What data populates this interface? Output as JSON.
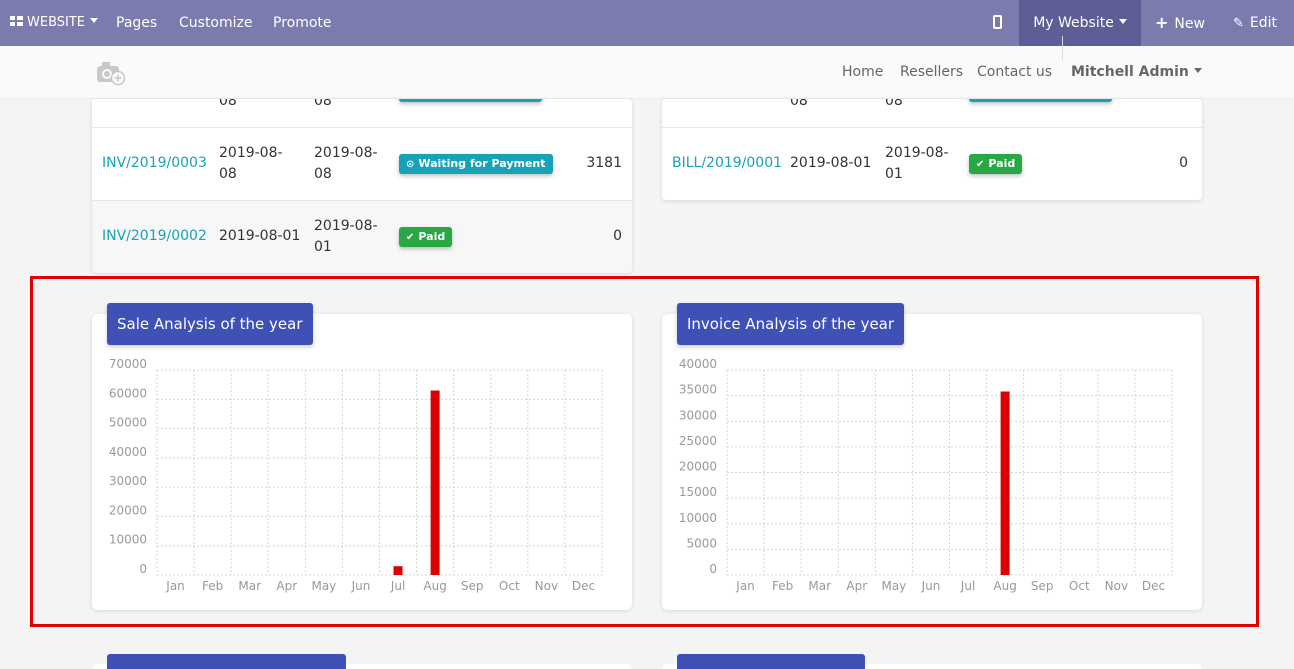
{
  "topbar": {
    "website_label": "WEBSITE",
    "menu": [
      "Pages",
      "Customize",
      "Promote"
    ],
    "my_website": "My Website",
    "new_label": "New",
    "edit_label": "Edit"
  },
  "header": {
    "nav": [
      "Home",
      "Resellers",
      "Contact us"
    ],
    "user": "Mitchell Admin"
  },
  "invoices_left": {
    "partial_row": {
      "date1": "08",
      "date2": "08"
    },
    "rows": [
      {
        "number": "INV/2019/0003",
        "date": "2019-08-08",
        "due": "2019-08-08",
        "status": "Waiting for Payment",
        "amount": "3181"
      },
      {
        "number": "INV/2019/0002",
        "date": "2019-08-01",
        "due": "2019-08-01",
        "status": "Paid",
        "amount": "0"
      }
    ]
  },
  "invoices_right": {
    "partial_row": {
      "date1": "08",
      "date2": "08"
    },
    "rows": [
      {
        "number": "BILL/2019/0001",
        "date": "2019-08-01",
        "due": "2019-08-01",
        "status": "Paid",
        "amount": "0"
      }
    ]
  },
  "colors": {
    "bar": "#dd0000",
    "title_bg": "#3f51b5",
    "link": "#17a2b8",
    "highlight": "#e00000"
  },
  "chart_data": [
    {
      "type": "bar",
      "title": "Sale Analysis of the year",
      "categories": [
        "Jan",
        "Feb",
        "Mar",
        "Apr",
        "May",
        "Jun",
        "Jul",
        "Aug",
        "Sep",
        "Oct",
        "Nov",
        "Dec"
      ],
      "values": [
        0,
        0,
        0,
        0,
        0,
        0,
        3000,
        63000,
        0,
        0,
        0,
        0
      ],
      "yticks": [
        0,
        10000,
        20000,
        30000,
        40000,
        50000,
        60000,
        70000
      ],
      "ylim": [
        0,
        70000
      ],
      "grid": true,
      "xlabel": "",
      "ylabel": ""
    },
    {
      "type": "bar",
      "title": "Invoice Analysis of the year",
      "categories": [
        "Jan",
        "Feb",
        "Mar",
        "Apr",
        "May",
        "Jun",
        "Jul",
        "Aug",
        "Sep",
        "Oct",
        "Nov",
        "Dec"
      ],
      "values": [
        0,
        0,
        0,
        0,
        0,
        0,
        0,
        35800,
        0,
        0,
        0,
        0
      ],
      "yticks": [
        0,
        5000,
        10000,
        15000,
        20000,
        25000,
        30000,
        35000,
        40000
      ],
      "ylim": [
        0,
        40000
      ],
      "grid": true,
      "xlabel": "",
      "ylabel": ""
    }
  ]
}
